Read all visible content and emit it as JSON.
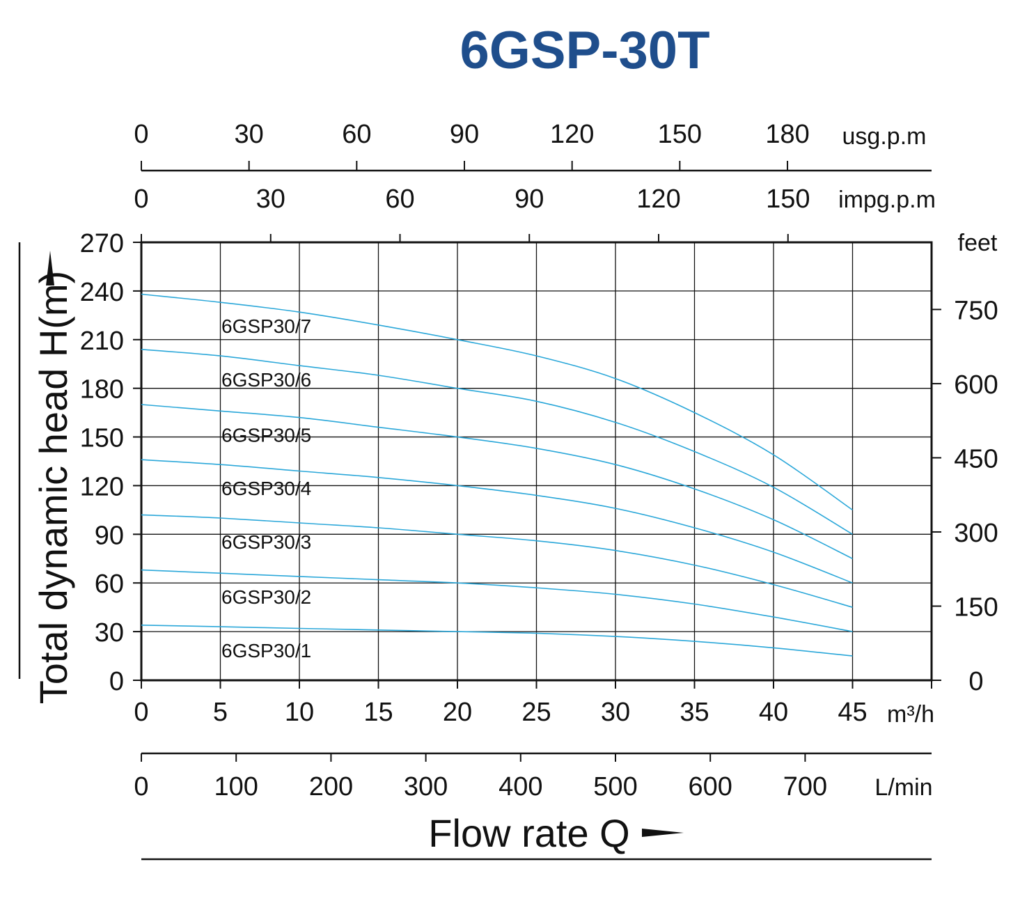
{
  "title": "6GSP-30T",
  "chart_data": {
    "type": "line",
    "colors": {
      "curve": "#2aa7d9",
      "title": "#1f4e8c"
    },
    "x_axis": {
      "unit": "m³/h",
      "range": [
        0,
        50
      ],
      "ticks": [
        "0",
        "5",
        "10",
        "15",
        "20",
        "25",
        "30",
        "35",
        "40",
        "45"
      ]
    },
    "x_axis_lmin": {
      "unit": "L/min",
      "ticks": [
        "0",
        "100",
        "200",
        "300",
        "400",
        "500",
        "600",
        "700"
      ]
    },
    "x_axis_usgpm": {
      "unit": "usg.p.m",
      "ticks": [
        "0",
        "30",
        "60",
        "90",
        "120",
        "150",
        "180"
      ]
    },
    "x_axis_impgpm": {
      "unit": "impg.p.m",
      "ticks": [
        "0",
        "30",
        "60",
        "90",
        "120",
        "150"
      ]
    },
    "y_axis": {
      "range": [
        0,
        270
      ],
      "ticks": [
        "0",
        "30",
        "60",
        "90",
        "120",
        "150",
        "180",
        "210",
        "240",
        "270"
      ]
    },
    "y_axis_feet": {
      "unit": "feet",
      "ticks": [
        "0",
        "150",
        "300",
        "450",
        "600",
        "750"
      ]
    },
    "xlabel": "Flow rate Q",
    "ylabel": "Total dynamic head H(m)",
    "grid": true,
    "x": [
      0,
      5,
      10,
      15,
      20,
      25,
      30,
      35,
      40,
      45
    ],
    "series": [
      {
        "name": "6GSP30/1",
        "values": [
          34,
          33,
          32,
          31,
          30,
          29,
          27,
          24,
          20,
          15
        ]
      },
      {
        "name": "6GSP30/2",
        "values": [
          68,
          66,
          64,
          62,
          60,
          57,
          53,
          47,
          39,
          30
        ]
      },
      {
        "name": "6GSP30/3",
        "values": [
          102,
          100,
          97,
          94,
          90,
          86,
          80,
          71,
          59,
          45
        ]
      },
      {
        "name": "6GSP30/4",
        "values": [
          136,
          133,
          129,
          125,
          120,
          114,
          106,
          94,
          79,
          60
        ]
      },
      {
        "name": "6GSP30/5",
        "values": [
          170,
          166,
          162,
          156,
          150,
          143,
          133,
          118,
          99,
          75
        ]
      },
      {
        "name": "6GSP30/6",
        "values": [
          204,
          200,
          194,
          188,
          180,
          172,
          159,
          141,
          119,
          90
        ]
      },
      {
        "name": "6GSP30/7",
        "values": [
          238,
          233,
          227,
          219,
          210,
          200,
          186,
          165,
          139,
          105
        ]
      }
    ]
  }
}
